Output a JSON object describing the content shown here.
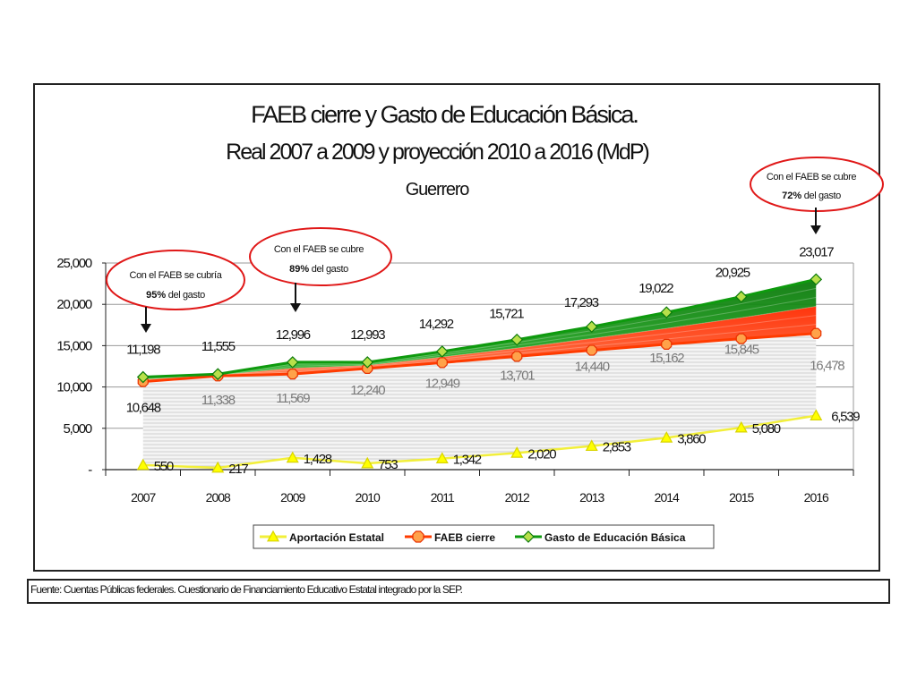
{
  "chart_data": {
    "type": "line",
    "title": "FAEB cierre y Gasto de Educación Básica.",
    "subtitle": "Real 2007 a 2009 y proyección 2010 a 2016 (MdP)",
    "subtitle2": "Guerrero",
    "categories": [
      "2007",
      "2008",
      "2009",
      "2010",
      "2011",
      "2012",
      "2013",
      "2014",
      "2015",
      "2016"
    ],
    "ylim": [
      0,
      25000
    ],
    "yticks": [
      0,
      5000,
      10000,
      15000,
      20000,
      25000
    ],
    "ytick_labels": [
      "-",
      "5,000",
      "10,000",
      "15,000",
      "20,000",
      "25,000"
    ],
    "grid": true,
    "legend_position": "bottom",
    "series": [
      {
        "name": "Aportación Estatal",
        "color": "#ffff00",
        "marker": "triangle",
        "values": [
          550,
          217,
          1428,
          753,
          1342,
          2020,
          2853,
          3860,
          5080,
          6539
        ],
        "labels": [
          "550",
          "217",
          "1,428",
          "753",
          "1,342",
          "2,020",
          "2,853",
          "3,860",
          "5,080",
          "6,539"
        ]
      },
      {
        "name": "FAEB cierre",
        "color": "#ff3b00",
        "marker": "octagon",
        "values": [
          10648,
          11338,
          11569,
          12240,
          12949,
          13701,
          14440,
          15162,
          15845,
          16478
        ],
        "labels": [
          "10,648",
          "11,338",
          "11,569",
          "12,240",
          "12,949",
          "13,701",
          "14,440",
          "15,162",
          "15,845",
          "16,478"
        ]
      },
      {
        "name": "Gasto de Educación Básica",
        "color": "#0e9a0e",
        "marker": "diamond",
        "values": [
          11198,
          11555,
          12996,
          12993,
          14292,
          15721,
          17293,
          19022,
          20925,
          23017
        ],
        "labels": [
          "11,198",
          "11,555",
          "12,996",
          "12,993",
          "14,292",
          "15,721",
          "17,293",
          "19,022",
          "20,925",
          "23,017"
        ]
      }
    ],
    "annotations": [
      {
        "year": "2007",
        "line1": "Con el FAEB se cubría",
        "pct": "95%",
        "rest": "del gasto"
      },
      {
        "year": "2009",
        "line1": "Con el FAEB se cubre",
        "pct": "89%",
        "rest": "del gasto"
      },
      {
        "year": "2016",
        "line1": "Con el FAEB se cubre",
        "pct": "72%",
        "rest": "del gasto"
      }
    ]
  },
  "source": "Fuente: Cuentas Públicas federales. Cuestionario de Financiamiento Educativo Estatal integrado por la SEP."
}
